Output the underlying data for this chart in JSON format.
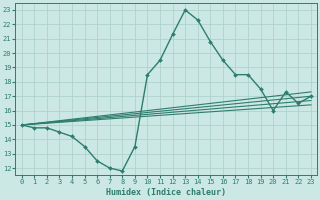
{
  "xlabel": "Humidex (Indice chaleur)",
  "ylabel": "",
  "xlim": [
    -0.5,
    23.5
  ],
  "ylim": [
    11.5,
    23.5
  ],
  "yticks": [
    12,
    13,
    14,
    15,
    16,
    17,
    18,
    19,
    20,
    21,
    22,
    23
  ],
  "xticks": [
    0,
    1,
    2,
    3,
    4,
    5,
    6,
    7,
    8,
    9,
    10,
    11,
    12,
    13,
    14,
    15,
    16,
    17,
    18,
    19,
    20,
    21,
    22,
    23
  ],
  "bg_color": "#cce8e4",
  "line_color": "#2e7d6e",
  "grid_color": "#aacfca",
  "main_line": {
    "x": [
      0,
      1,
      2,
      3,
      4,
      5,
      6,
      7,
      8,
      9,
      10,
      11,
      12,
      13,
      14,
      15,
      16,
      17,
      18,
      19,
      20,
      21,
      22,
      23
    ],
    "y": [
      15.0,
      14.8,
      14.8,
      14.5,
      14.2,
      13.5,
      12.5,
      12.0,
      11.8,
      13.5,
      18.5,
      19.5,
      21.3,
      23.0,
      22.3,
      20.8,
      19.5,
      18.5,
      18.5,
      17.5,
      16.0,
      17.3,
      16.5,
      17.0
    ]
  },
  "trend_lines": [
    {
      "x": [
        0,
        23
      ],
      "y": [
        15.0,
        17.3
      ]
    },
    {
      "x": [
        0,
        23
      ],
      "y": [
        15.0,
        17.0
      ]
    },
    {
      "x": [
        0,
        23
      ],
      "y": [
        15.0,
        16.7
      ]
    },
    {
      "x": [
        0,
        23
      ],
      "y": [
        15.0,
        16.4
      ]
    }
  ]
}
